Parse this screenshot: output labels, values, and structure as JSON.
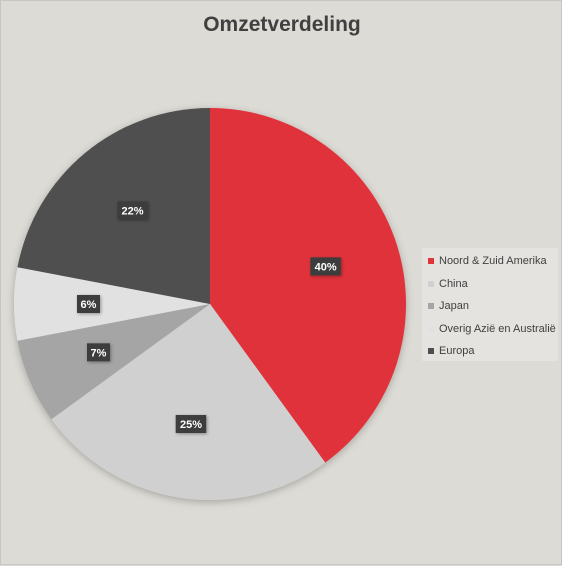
{
  "chart_data": {
    "type": "pie",
    "title": "Omzetverdeling",
    "slices": [
      {
        "label": "Noord & Zuid Amerika",
        "value": 40,
        "display": "40%",
        "color": "#e0323a"
      },
      {
        "label": "China",
        "value": 25,
        "display": "25%",
        "color": "#d0d0d0"
      },
      {
        "label": "Japan",
        "value": 7,
        "display": "7%",
        "color": "#a5a5a5"
      },
      {
        "label": "Overig Azië en Australië",
        "value": 6,
        "display": "6%",
        "color": "#e1e1e1"
      },
      {
        "label": "Europa",
        "value": 22,
        "display": "22%",
        "color": "#4f4f4f"
      }
    ],
    "start_angle_deg": 0,
    "direction": "clockwise",
    "legend_position": "right",
    "data_label_style": {
      "background": "#3c3c3c",
      "text_color": "#ffffff"
    }
  }
}
